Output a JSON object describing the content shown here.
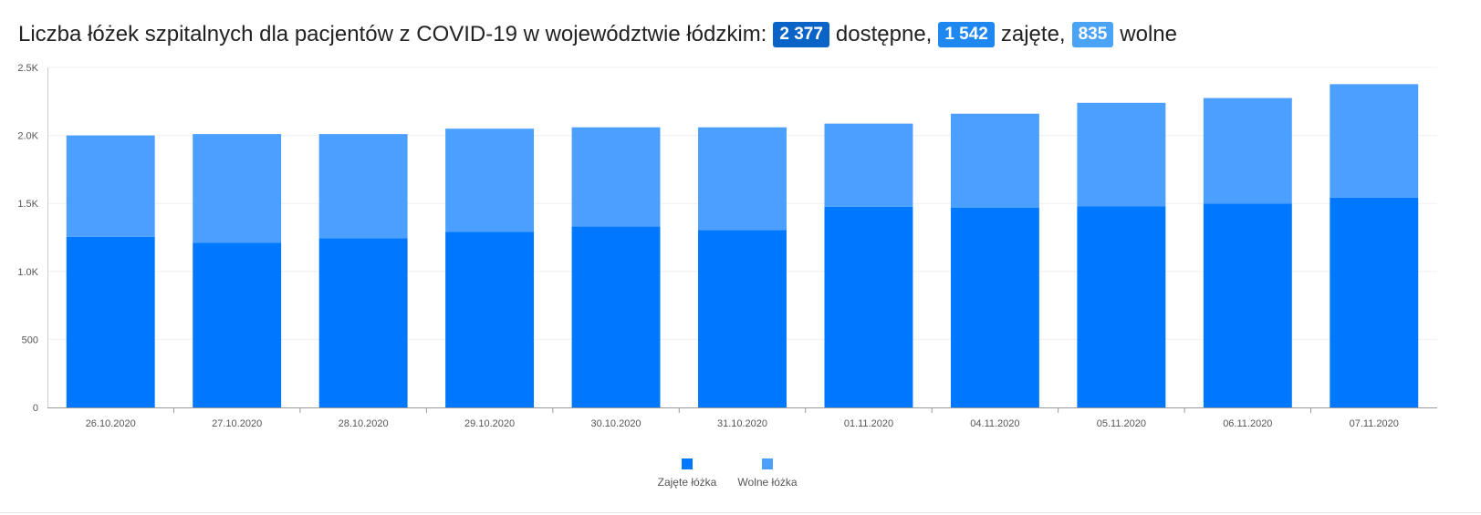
{
  "header": {
    "prefix": "Liczba łóżek szpitalnych dla pacjentów z COVID-19 w województwie łódzkim:",
    "available_value": "2 377",
    "available_label": "dostępne,",
    "occupied_value": "1 542",
    "occupied_label": "zajęte,",
    "free_value": "835",
    "free_label": "wolne"
  },
  "colors": {
    "occupied": "#0077ff",
    "free": "#4ba0ff",
    "badge_available": "#0a64c8",
    "badge_occupied": "#1e87f0",
    "badge_free": "#4aa3f5"
  },
  "chart_data": {
    "type": "bar",
    "stacked": true,
    "categories": [
      "26.10.2020",
      "27.10.2020",
      "28.10.2020",
      "29.10.2020",
      "30.10.2020",
      "31.10.2020",
      "01.11.2020",
      "04.11.2020",
      "05.11.2020",
      "06.11.2020",
      "07.11.2020"
    ],
    "series": [
      {
        "name": "Zajęte łóżka",
        "values": [
          1255,
          1210,
          1245,
          1290,
          1330,
          1305,
          1475,
          1470,
          1480,
          1500,
          1542
        ]
      },
      {
        "name": "Wolne łóżka",
        "values": [
          745,
          800,
          765,
          760,
          730,
          755,
          612,
          690,
          760,
          775,
          835
        ]
      }
    ],
    "ylim": [
      0,
      2500
    ],
    "yticks": [
      0,
      500,
      1000,
      1500,
      2000,
      2500
    ],
    "ytick_labels": [
      "0",
      "500",
      "1.0K",
      "1.5K",
      "2.0K",
      "2.5K"
    ],
    "legend_position": "bottom-center",
    "grid": true
  }
}
